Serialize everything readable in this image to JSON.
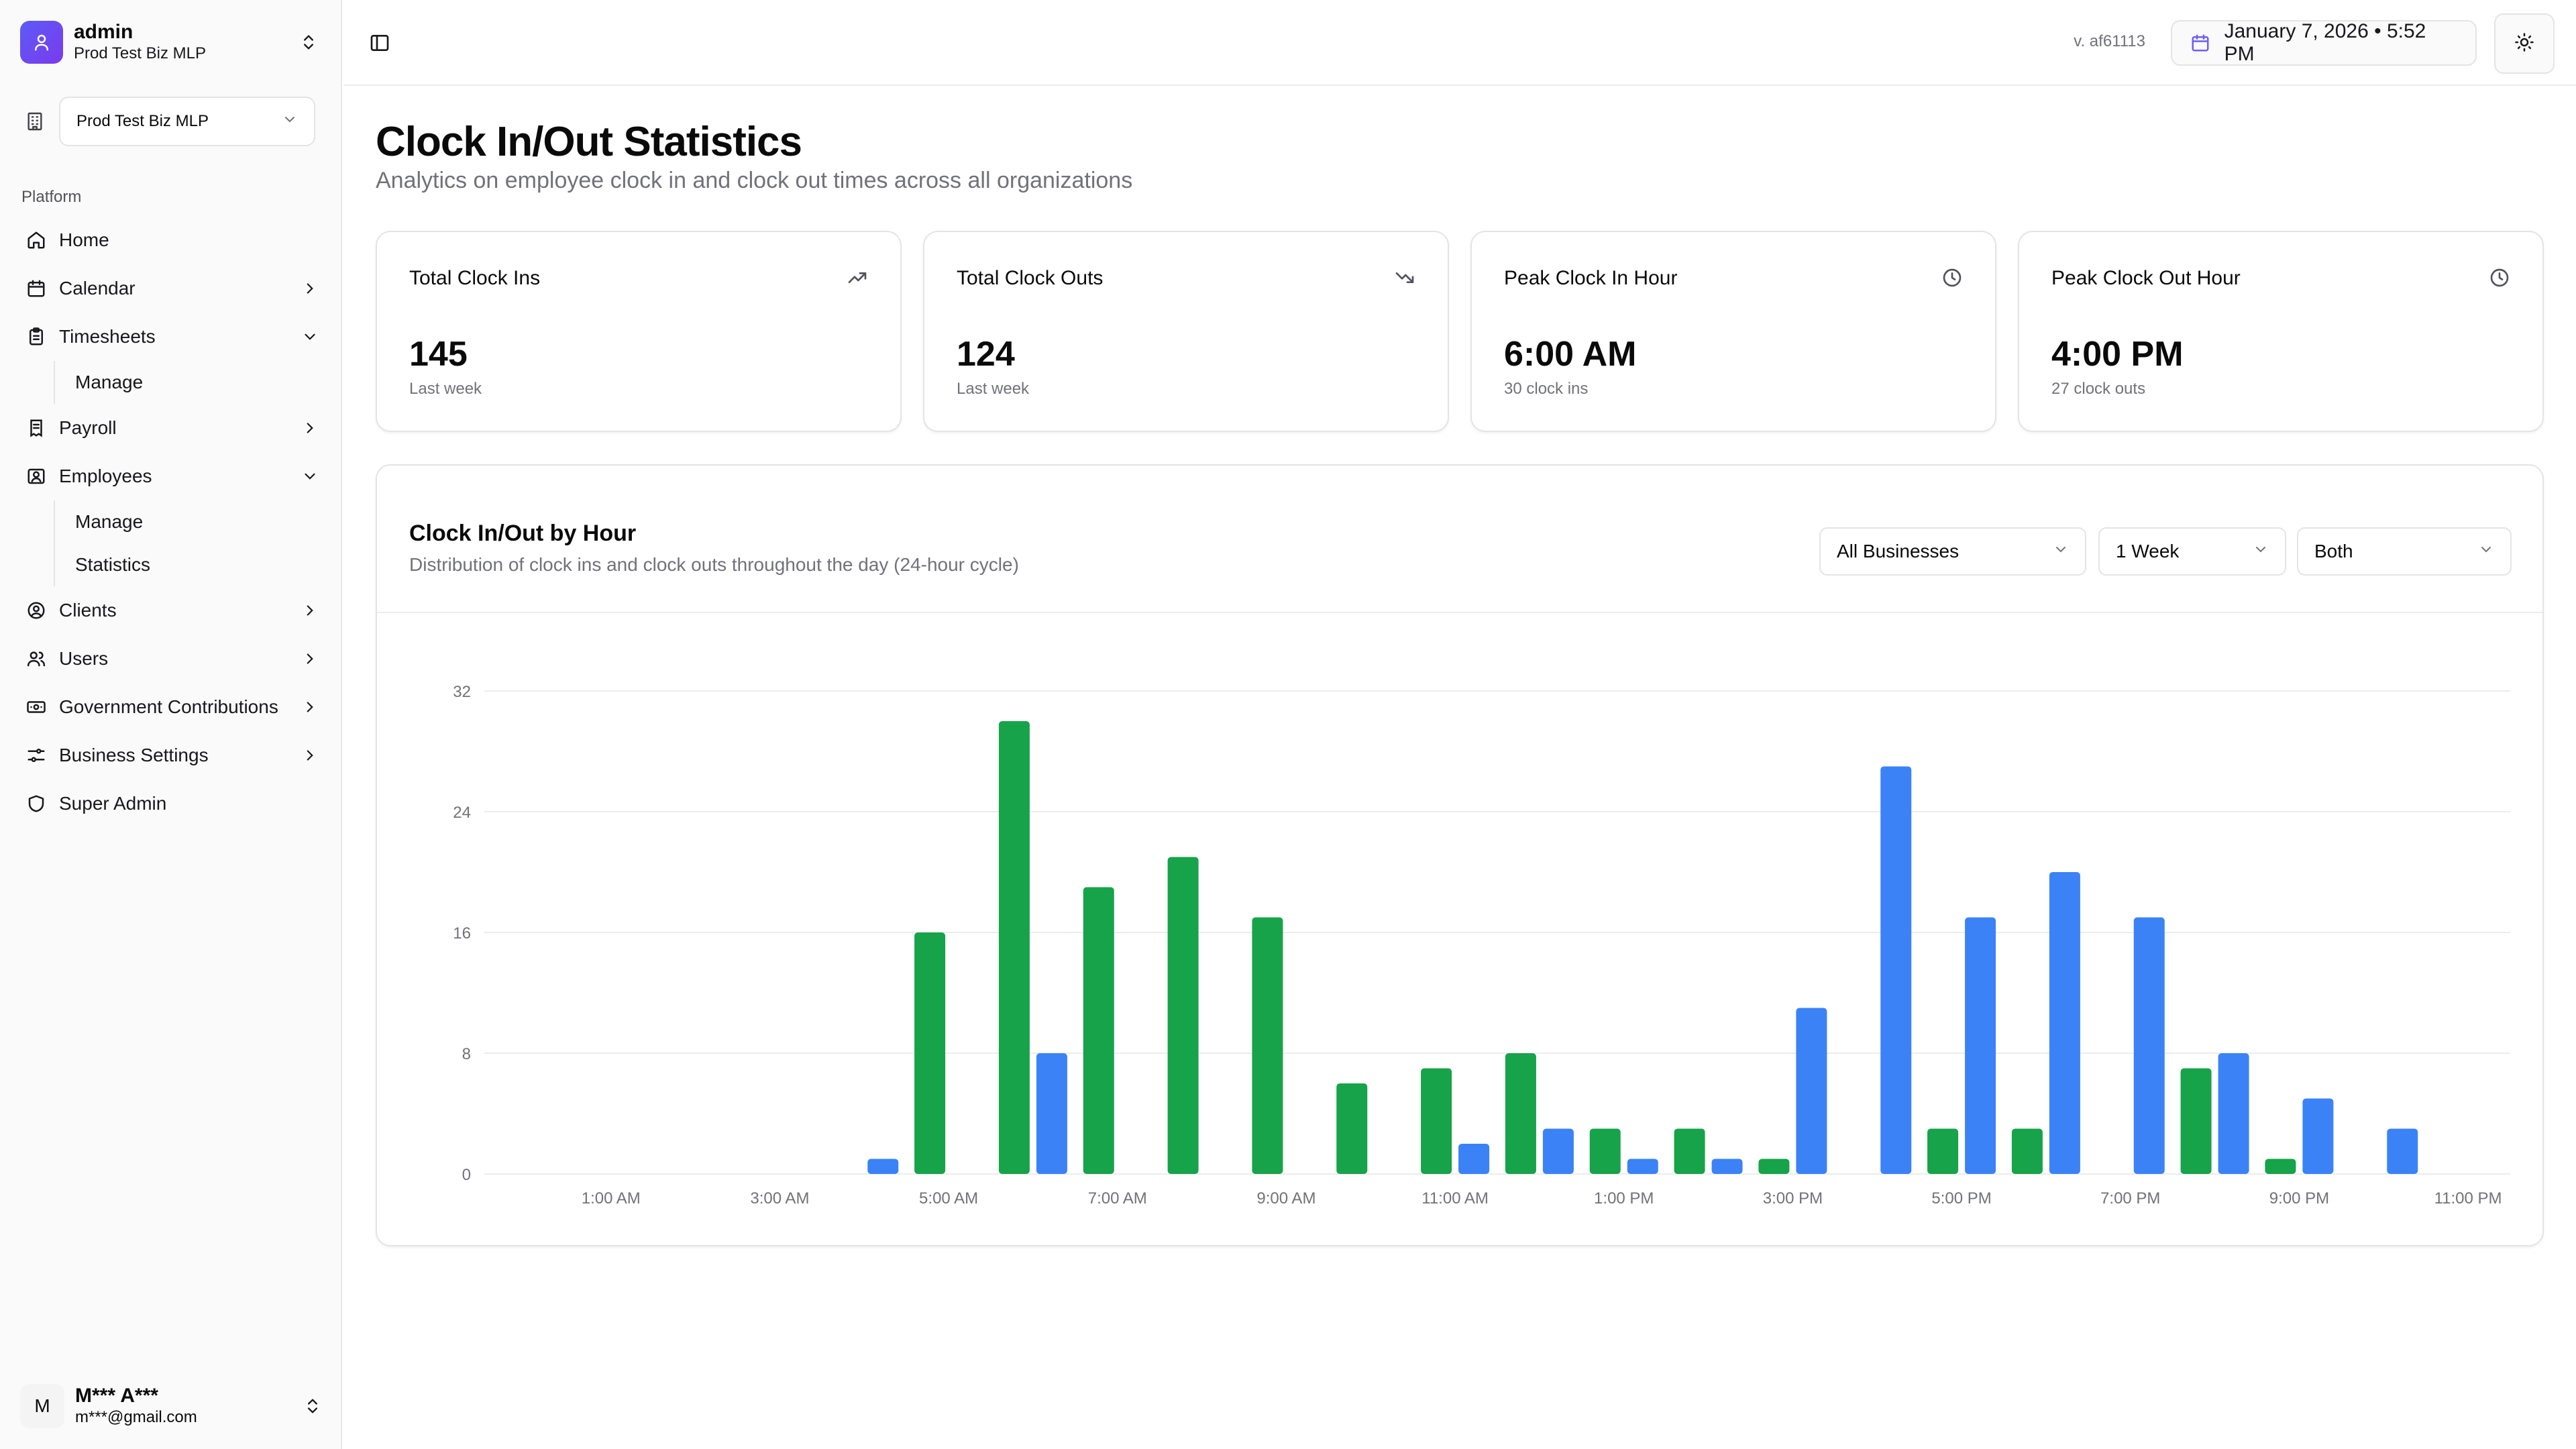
{
  "sidebar": {
    "workspace": {
      "name": "admin",
      "sub": "Prod Test Biz MLP"
    },
    "business_select": "Prod Test Biz MLP",
    "group_label": "Platform",
    "items": [
      {
        "label": "Home",
        "icon": "home-icon"
      },
      {
        "label": "Calendar",
        "icon": "calendar-icon"
      },
      {
        "label": "Timesheets",
        "icon": "clipboard-icon",
        "expanded": true,
        "children": [
          "Manage"
        ]
      },
      {
        "label": "Payroll",
        "icon": "receipt-icon"
      },
      {
        "label": "Employees",
        "icon": "contact-icon",
        "expanded": true,
        "children": [
          "Manage",
          "Statistics"
        ]
      },
      {
        "label": "Clients",
        "icon": "user-circle-icon"
      },
      {
        "label": "Users",
        "icon": "users-icon"
      },
      {
        "label": "Government Contributions",
        "icon": "banknote-icon"
      },
      {
        "label": "Business Settings",
        "icon": "sliders-icon"
      },
      {
        "label": "Super Admin",
        "icon": "shield-icon"
      }
    ],
    "user": {
      "initial": "M",
      "name": "M*** A***",
      "email": "m***@gmail.com"
    }
  },
  "topbar": {
    "version": "v. af61113",
    "datetime": "January 7, 2026 • 5:52 PM"
  },
  "page": {
    "title": "Clock In/Out Statistics",
    "subtitle": "Analytics on employee clock in and clock out times across all organizations"
  },
  "cards": [
    {
      "title": "Total Clock Ins",
      "value": "145",
      "note": "Last week",
      "icon": "trending-up-icon"
    },
    {
      "title": "Total Clock Outs",
      "value": "124",
      "note": "Last week",
      "icon": "trending-down-icon"
    },
    {
      "title": "Peak Clock In Hour",
      "value": "6:00 AM",
      "note": "30 clock ins",
      "icon": "clock-icon"
    },
    {
      "title": "Peak Clock Out Hour",
      "value": "4:00 PM",
      "note": "27 clock outs",
      "icon": "clock-icon"
    }
  ],
  "chart_card": {
    "title": "Clock In/Out by Hour",
    "subtitle": "Distribution of clock ins and clock outs throughout the day (24-hour cycle)",
    "filters": {
      "business": "All Businesses",
      "range": "1 Week",
      "mode": "Both"
    }
  },
  "colors": {
    "clock_in": "#16a34a",
    "clock_out": "#3b82f6",
    "accent": "#6d5ef6"
  },
  "chart_data": {
    "type": "bar",
    "categories": [
      "12:00 AM",
      "1:00 AM",
      "2:00 AM",
      "3:00 AM",
      "4:00 AM",
      "5:00 AM",
      "6:00 AM",
      "7:00 AM",
      "8:00 AM",
      "9:00 AM",
      "10:00 AM",
      "11:00 AM",
      "12:00 PM",
      "1:00 PM",
      "2:00 PM",
      "3:00 PM",
      "4:00 PM",
      "5:00 PM",
      "6:00 PM",
      "7:00 PM",
      "8:00 PM",
      "9:00 PM",
      "10:00 PM",
      "11:00 PM"
    ],
    "tick_labels": [
      "1:00 AM",
      "3:00 AM",
      "5:00 AM",
      "7:00 AM",
      "9:00 AM",
      "11:00 AM",
      "1:00 PM",
      "3:00 PM",
      "5:00 PM",
      "7:00 PM",
      "9:00 PM",
      "11:00 PM"
    ],
    "series": [
      {
        "values": [
          0,
          0,
          0,
          0,
          0,
          16,
          30,
          19,
          21,
          17,
          6,
          7,
          8,
          3,
          3,
          1,
          0,
          3,
          3,
          0,
          7,
          1,
          0,
          0
        ]
      },
      {
        "values": [
          0,
          0,
          0,
          0,
          1,
          0,
          8,
          0,
          0,
          0,
          0,
          2,
          3,
          1,
          1,
          11,
          27,
          17,
          20,
          17,
          8,
          5,
          3,
          0
        ]
      }
    ],
    "ylim": [
      0,
      32
    ],
    "yticks": [
      0,
      8,
      16,
      24,
      32
    ],
    "grid": true
  }
}
